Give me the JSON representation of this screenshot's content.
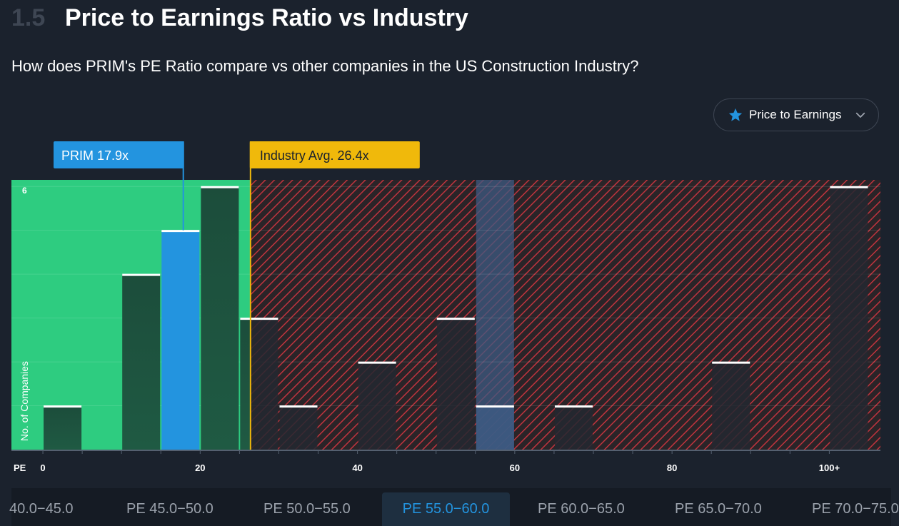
{
  "header": {
    "section_number": "1.5",
    "title": "Price to Earnings Ratio vs Industry",
    "subtitle": "How does PRIM's PE Ratio compare vs other companies in the US Construction Industry?"
  },
  "metric_selector": {
    "label": "Price to Earnings",
    "icon": "star-icon",
    "chevron": "chevron-down-icon"
  },
  "chart_data": {
    "type": "bar",
    "ylabel": "No. of Companies",
    "xlabel": "PE",
    "x_ticks": [
      {
        "value": 0,
        "label": "0"
      },
      {
        "value": 20,
        "label": "20"
      },
      {
        "value": 40,
        "label": "40"
      },
      {
        "value": 60,
        "label": "60"
      },
      {
        "value": 80,
        "label": "80"
      },
      {
        "value": 100,
        "label": "100+"
      }
    ],
    "y_ticks": [
      {
        "value": 6,
        "label": "6"
      }
    ],
    "ylim": [
      0,
      6.15
    ],
    "xlim": [
      -4,
      106.5
    ],
    "bin_width": 5,
    "bins": [
      {
        "start": 0,
        "count": 1
      },
      {
        "start": 10,
        "count": 4
      },
      {
        "start": 15,
        "count": 5,
        "company": true
      },
      {
        "start": 20,
        "count": 6
      },
      {
        "start": 25,
        "count": 3
      },
      {
        "start": 30,
        "count": 1
      },
      {
        "start": 40,
        "count": 2
      },
      {
        "start": 50,
        "count": 3
      },
      {
        "start": 55,
        "count": 1,
        "selected": true
      },
      {
        "start": 65,
        "count": 1
      },
      {
        "start": 85,
        "count": 2
      },
      {
        "start": 100,
        "count": 6
      }
    ],
    "company": {
      "ticker": "PRIM",
      "value": 17.9,
      "label": "PRIM 17.9x",
      "color": "#2394df"
    },
    "industry_avg": {
      "value": 26.4,
      "label": "Industry Avg. 26.4x",
      "color": "#f0b90b"
    },
    "colors": {
      "undervalued_bg": "#2ecc80",
      "overvalued_bg": "#2a2428",
      "overvalued_stripe": "#c0343e",
      "bar_fill": "#1c4d3b",
      "bar_fill_dark": "#232830",
      "selected_band": "#3d5a82"
    }
  },
  "range_tabs": [
    {
      "label": "40.0−45.0"
    },
    {
      "label": "PE 45.0−50.0"
    },
    {
      "label": "PE 50.0−55.0"
    },
    {
      "label": "PE 55.0−60.0",
      "active": true
    },
    {
      "label": "PE 60.0−65.0"
    },
    {
      "label": "PE 65.0−70.0"
    },
    {
      "label": "PE 70.0−75.0"
    }
  ]
}
